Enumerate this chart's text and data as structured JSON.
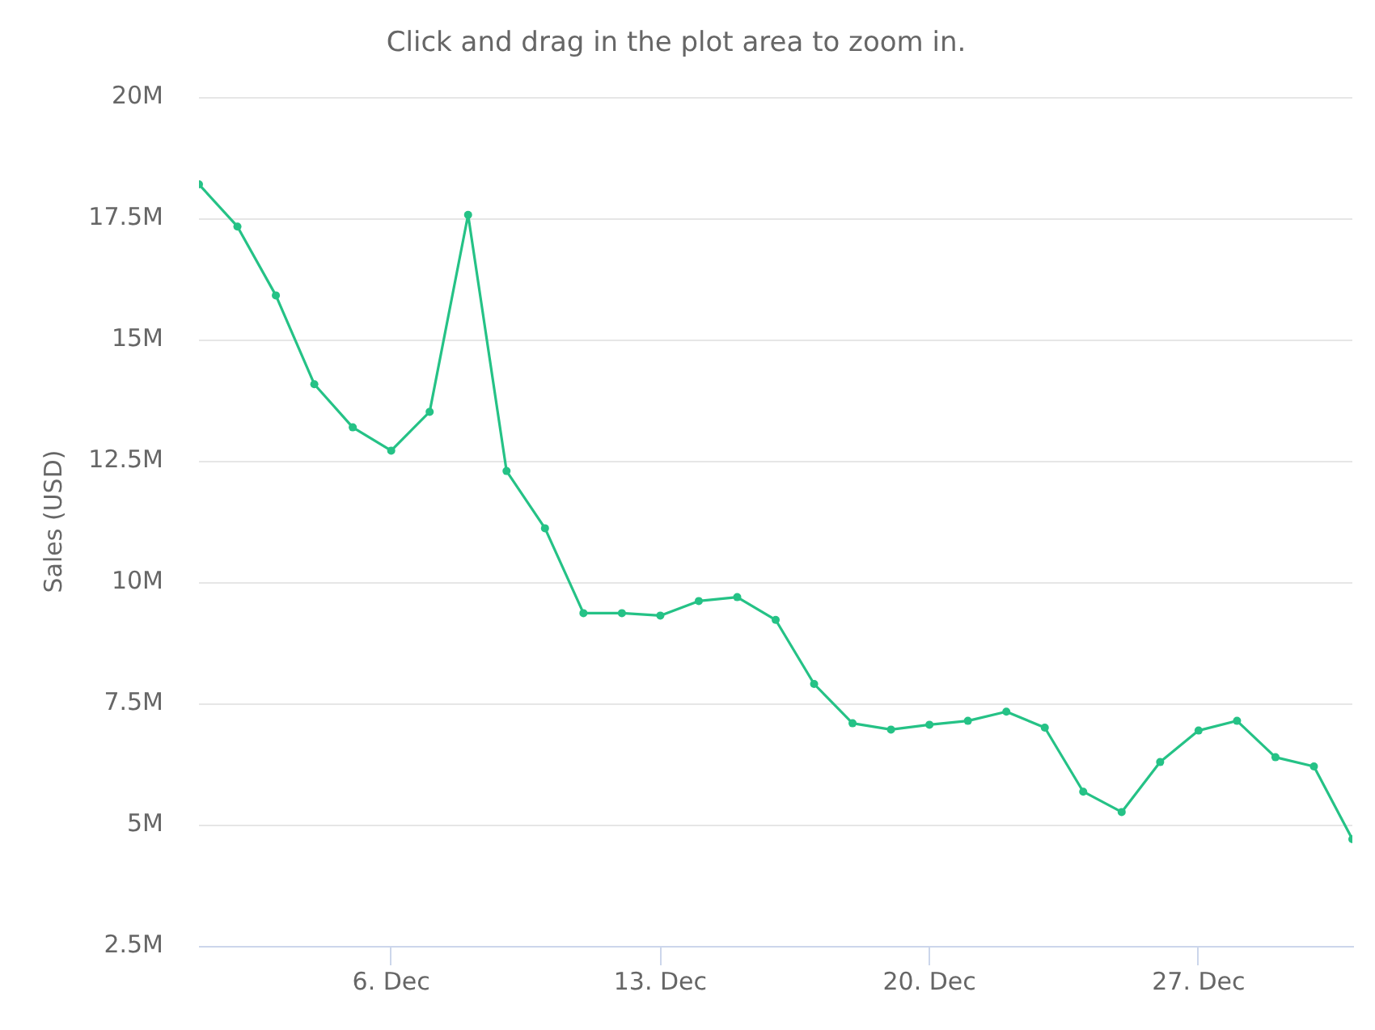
{
  "chart_data": {
    "type": "line",
    "subtitle": "Click and drag in the plot area to zoom in.",
    "ylabel": "Sales (USD)",
    "x": [
      "--12-01",
      "--12-02",
      "--12-03",
      "--12-04",
      "--12-05",
      "--12-06",
      "--12-07",
      "--12-08",
      "--12-09",
      "--12-10",
      "--12-11",
      "--12-12",
      "--12-13",
      "--12-14",
      "--12-15",
      "--12-16",
      "--12-17",
      "--12-18",
      "--12-19",
      "--12-20",
      "--12-21",
      "--12-22",
      "--12-23",
      "--12-24",
      "--12-25",
      "--12-26",
      "--12-27",
      "--12-28",
      "--12-29",
      "--12-30",
      "--12-31"
    ],
    "values": [
      18200000,
      17330000,
      15910000,
      14080000,
      13190000,
      12710000,
      13510000,
      17570000,
      12290000,
      11110000,
      9360000,
      9360000,
      9310000,
      9610000,
      9690000,
      9220000,
      7900000,
      7090000,
      6960000,
      7060000,
      7140000,
      7330000,
      7000000,
      5680000,
      5260000,
      6290000,
      6940000,
      7140000,
      6390000,
      6200000,
      4700000
    ],
    "color": "#25c286",
    "xlim": [
      "--12-01",
      "--12-31"
    ],
    "xticks": [
      {
        "value": "--12-06",
        "label": "6. Dec"
      },
      {
        "value": "--12-13",
        "label": "13. Dec"
      },
      {
        "value": "--12-20",
        "label": "20. Dec"
      },
      {
        "value": "--12-27",
        "label": "27. Dec"
      }
    ],
    "ylim": [
      2500000,
      20000000
    ],
    "yticks": [
      {
        "value": 2500000,
        "label": "2.5M"
      },
      {
        "value": 5000000,
        "label": "5M"
      },
      {
        "value": 7500000,
        "label": "7.5M"
      },
      {
        "value": 10000000,
        "label": "10M"
      },
      {
        "value": 12500000,
        "label": "12.5M"
      },
      {
        "value": 15000000,
        "label": "15M"
      },
      {
        "value": 17500000,
        "label": "17.5M"
      },
      {
        "value": 20000000,
        "label": "20M"
      }
    ],
    "grid": "y",
    "legend": false,
    "marker": "circle",
    "line_style": "solid"
  }
}
